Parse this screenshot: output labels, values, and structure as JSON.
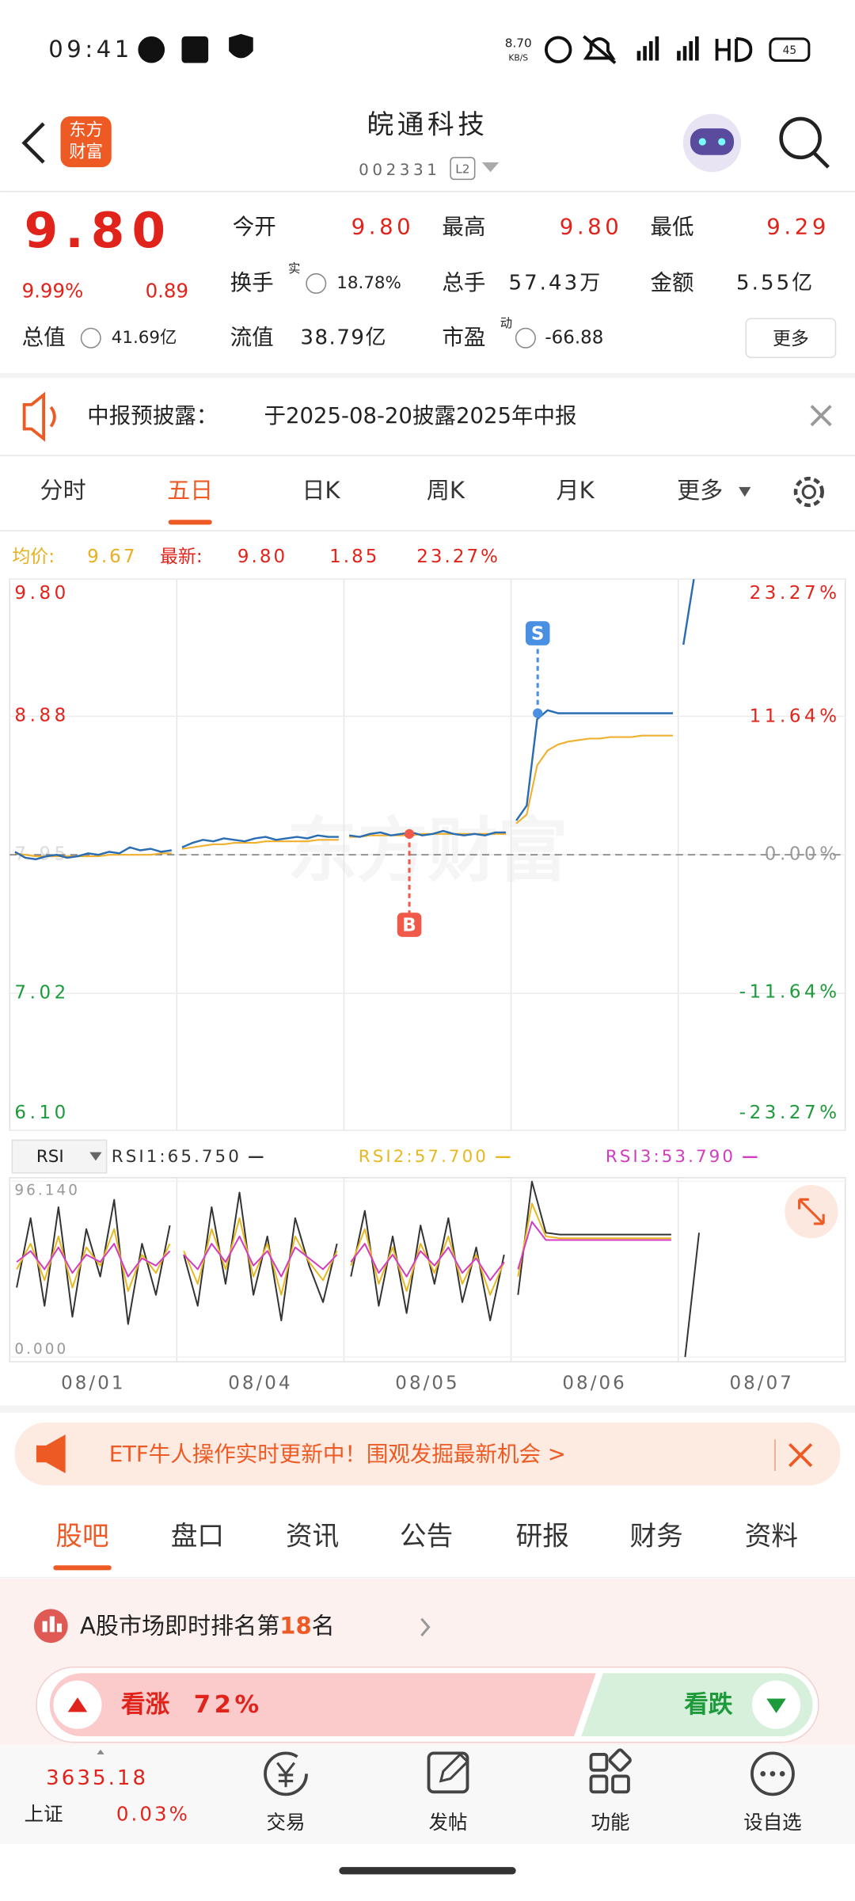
{
  "status": {
    "time": "09:41",
    "speed": "8.70",
    "speed_unit": "KB/S",
    "battery": "45"
  },
  "header": {
    "logo_line1": "东方",
    "logo_line2": "财富",
    "title": "皖通科技",
    "code": "002331",
    "badge": "L2"
  },
  "quote": {
    "price": "9.80",
    "change_pct": "9.99%",
    "change": "0.89",
    "fields": [
      {
        "label": "今开",
        "value": "9.80"
      },
      {
        "label": "最高",
        "value": "9.80"
      },
      {
        "label": "最低",
        "value": "9.29"
      },
      {
        "label": "换手",
        "sup": "实",
        "value": "18.78%"
      },
      {
        "label": "总手",
        "value": "57.43万"
      },
      {
        "label": "金额",
        "value": "5.55亿"
      },
      {
        "label": "总值",
        "value": "41.69亿"
      },
      {
        "label": "流值",
        "value": "38.79亿"
      },
      {
        "label": "市盈",
        "sup": "动",
        "value": "-66.88"
      }
    ],
    "more": "更多"
  },
  "notice": {
    "label": "中报预披露：",
    "text": "于2025-08-20披露2025年中报"
  },
  "tabs": {
    "items": [
      "分时",
      "五日",
      "日K",
      "周K",
      "月K",
      "更多"
    ],
    "active": 1
  },
  "legend": {
    "avg_label": "均价:",
    "avg": "9.67",
    "latest_label": "最新:",
    "latest": "9.80",
    "change": "1.85",
    "change_pct": "23.27%"
  },
  "chart": {
    "type": "line",
    "watermark": "东方财富",
    "ylim": [
      6.1,
      9.8
    ],
    "yticks": [
      {
        "value": 9.8,
        "label": "9.80"
      },
      8.88,
      7.95,
      7.02,
      {
        "value": 6.1,
        "label": "6.10"
      }
    ],
    "y2lim": [
      -23.27,
      23.27
    ],
    "y2ticks": [
      {
        "value": 23.27,
        "label": "23.27%"
      },
      {
        "value": 11.64,
        "label": "11.64%"
      },
      {
        "value": 0,
        "label": "0.00%"
      },
      {
        "value": -11.64,
        "label": "-11.64%"
      },
      {
        "value": -23.27,
        "label": "-23.27%"
      }
    ],
    "categories": [
      "08/01",
      "08/04",
      "08/05",
      "08/06",
      "08/07"
    ],
    "price_color": "#2a6db3",
    "avg_color": "#f0b030",
    "days": [
      {
        "price": [
          7.97,
          7.93,
          7.92,
          7.94,
          7.95,
          7.93,
          7.94,
          7.96,
          7.95,
          7.97,
          7.96,
          8.0,
          7.98,
          7.99,
          7.97,
          7.98
        ],
        "avg": [
          7.96,
          7.95,
          7.94,
          7.94,
          7.94,
          7.94,
          7.94,
          7.94,
          7.94,
          7.95,
          7.95,
          7.95,
          7.95,
          7.95,
          7.96,
          7.96
        ]
      },
      {
        "price": [
          8.0,
          8.03,
          8.05,
          8.04,
          8.06,
          8.05,
          8.04,
          8.06,
          8.07,
          8.05,
          8.06,
          8.07,
          8.06,
          8.08,
          8.07,
          8.07
        ],
        "avg": [
          7.99,
          8.0,
          8.01,
          8.02,
          8.02,
          8.03,
          8.03,
          8.03,
          8.04,
          8.04,
          8.04,
          8.04,
          8.04,
          8.05,
          8.05,
          8.05
        ]
      },
      {
        "price": [
          8.08,
          8.07,
          8.09,
          8.1,
          8.08,
          8.09,
          8.1,
          8.08,
          8.09,
          8.11,
          8.09,
          8.08,
          8.09,
          8.08,
          8.1,
          8.1
        ],
        "avg": [
          8.07,
          8.07,
          8.08,
          8.08,
          8.08,
          8.08,
          8.08,
          8.09,
          8.09,
          8.09,
          8.09,
          8.09,
          8.09,
          8.09,
          8.09,
          8.09
        ]
      },
      {
        "price": [
          8.18,
          8.28,
          8.86,
          8.92,
          8.9,
          8.9,
          8.9,
          8.9,
          8.9,
          8.9,
          8.9,
          8.9,
          8.9,
          8.9,
          8.9,
          8.9
        ],
        "avg": [
          8.16,
          8.22,
          8.55,
          8.65,
          8.69,
          8.71,
          8.72,
          8.73,
          8.73,
          8.74,
          8.74,
          8.74,
          8.75,
          8.75,
          8.75,
          8.75
        ]
      },
      {
        "price": [
          9.36,
          9.8,
          null,
          null,
          null,
          null,
          null,
          null,
          null,
          null,
          null,
          null,
          null,
          null,
          null,
          null
        ],
        "avg": [
          null,
          null,
          null,
          null,
          null,
          null,
          null,
          null,
          null,
          null,
          null,
          null,
          null,
          null,
          null,
          null
        ]
      }
    ],
    "trades": [
      {
        "label": "B",
        "price": 8.09
      },
      {
        "label": "S",
        "price": 8.9
      }
    ]
  },
  "rsi": {
    "selector": "RSI",
    "ylim": [
      0,
      96.14
    ],
    "yticks": [
      {
        "value": 96.14,
        "label": "96.140"
      },
      {
        "value": 0,
        "label": "0.000"
      }
    ],
    "series": [
      {
        "name": "RSI1:65.750",
        "color": "#333333",
        "days": [
          [
            38,
            76,
            28,
            82,
            22,
            70,
            44,
            86,
            18,
            62,
            34,
            72
          ],
          [
            56,
            28,
            82,
            40,
            90,
            34,
            66,
            20,
            76,
            50,
            30,
            62
          ],
          [
            44,
            80,
            28,
            66,
            24,
            72,
            40,
            76,
            30,
            60,
            20,
            56
          ],
          [
            34,
            96,
            68,
            67,
            67,
            67,
            67,
            67,
            67,
            67,
            67,
            67
          ],
          [
            0,
            68,
            null,
            null,
            null,
            null,
            null,
            null,
            null,
            null,
            null,
            null
          ]
        ]
      },
      {
        "name": "RSI2:57.700",
        "color": "#e8b820",
        "days": [
          [
            48,
            62,
            42,
            66,
            38,
            60,
            50,
            70,
            36,
            56,
            46,
            62
          ],
          [
            58,
            40,
            70,
            48,
            76,
            44,
            62,
            34,
            66,
            52,
            42,
            58
          ],
          [
            50,
            70,
            40,
            60,
            36,
            62,
            46,
            66,
            40,
            56,
            34,
            52
          ],
          [
            44,
            84,
            66,
            65,
            65,
            65,
            65,
            65,
            65,
            65,
            65,
            65
          ],
          [
            null,
            null,
            null,
            null,
            null,
            null,
            null,
            null,
            null,
            null,
            null,
            null
          ]
        ]
      },
      {
        "name": "RSI3:53.790",
        "color": "#d23cc0",
        "days": [
          [
            52,
            58,
            48,
            60,
            46,
            56,
            52,
            62,
            44,
            54,
            50,
            58
          ],
          [
            56,
            48,
            62,
            52,
            66,
            50,
            58,
            44,
            60,
            54,
            48,
            56
          ],
          [
            52,
            62,
            46,
            56,
            44,
            58,
            50,
            60,
            46,
            54,
            42,
            52
          ],
          [
            48,
            74,
            64,
            64,
            64,
            64,
            64,
            64,
            64,
            64,
            64,
            64
          ],
          [
            null,
            null,
            null,
            null,
            null,
            null,
            null,
            null,
            null,
            null,
            null,
            null
          ]
        ]
      }
    ]
  },
  "banner": {
    "text": "ETF牛人操作实时更新中！围观发掘最新机会 >"
  },
  "sections": {
    "items": [
      "股吧",
      "盘口",
      "资讯",
      "公告",
      "研报",
      "财务",
      "资料"
    ],
    "active": 0
  },
  "ranking": {
    "prefix": "A股市场即时排名第",
    "rank": "18",
    "suffix": "名"
  },
  "vote": {
    "up_label": "看涨",
    "up_pct": "72%",
    "down_label": "看跌"
  },
  "bottom": {
    "index_value": "3635.18",
    "index_name": "上证",
    "index_pct": "0.03%",
    "nav": [
      "交易",
      "发帖",
      "功能",
      "设自选"
    ]
  }
}
